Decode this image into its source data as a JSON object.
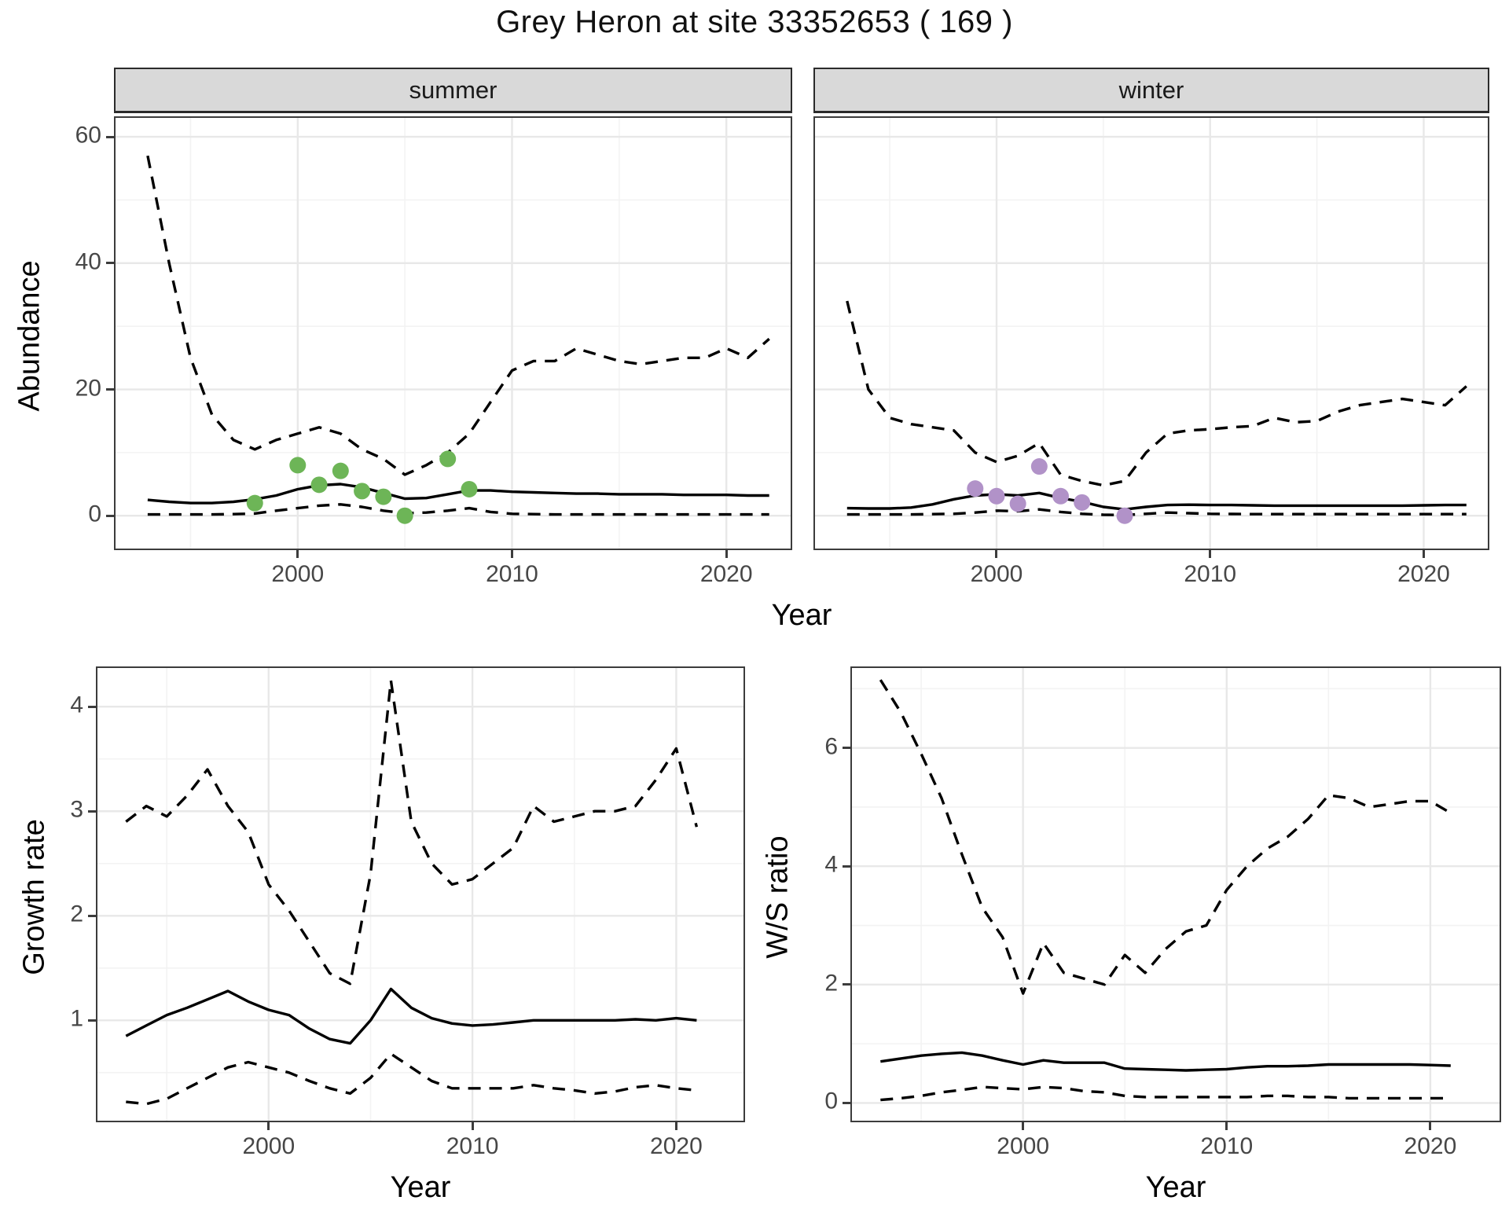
{
  "title": "Grey Heron at site 33352653 ( 169 )",
  "axes": {
    "top_ylabel": "Abundance",
    "top_xlabel": "Year",
    "growth_ylabel": "Growth rate",
    "growth_xlabel": "Year",
    "ws_ylabel": "W/S ratio",
    "ws_xlabel": "Year"
  },
  "facets": {
    "summer": "summer",
    "winter": "winter"
  },
  "colors": {
    "summer_point": "#6db557",
    "winter_point": "#b192c8",
    "line": "#000000",
    "strip_bg": "#d9d9d9",
    "grid_major": "#e8e8e8",
    "grid_minor": "#f3f3f3"
  },
  "chart_data": [
    {
      "key": "abundance_summer",
      "type": "line",
      "facet": "summer",
      "ylabel": "Abundance",
      "xlabel": "Year",
      "xlim": [
        1991.5,
        2023.0
      ],
      "ylim": [
        -5.2,
        63
      ],
      "xticks": [
        2000,
        2010,
        2020
      ],
      "yticks": [
        0,
        20,
        40,
        60
      ],
      "xminor": [
        1995,
        2005,
        2015
      ],
      "yminor": [
        10,
        30,
        50
      ],
      "x": [
        1993,
        1994,
        1995,
        1996,
        1997,
        1998,
        1999,
        2000,
        2001,
        2002,
        2003,
        2004,
        2005,
        2006,
        2007,
        2008,
        2009,
        2010,
        2011,
        2012,
        2013,
        2014,
        2015,
        2016,
        2017,
        2018,
        2019,
        2020,
        2021,
        2022
      ],
      "series": [
        {
          "name": "upper CI",
          "style": "dashed",
          "values": [
            57,
            40,
            25,
            16,
            12,
            10.5,
            12,
            13,
            14,
            13,
            10.5,
            9,
            6.5,
            8,
            10,
            13,
            18,
            23,
            24.5,
            24.5,
            26.5,
            25.5,
            24.5,
            24,
            24.5,
            25,
            25,
            26.5,
            25,
            28
          ]
        },
        {
          "name": "estimate",
          "style": "solid",
          "values": [
            2.5,
            2.2,
            2.0,
            2.0,
            2.2,
            2.6,
            3.2,
            4.2,
            4.8,
            5.0,
            4.5,
            3.6,
            2.7,
            2.8,
            3.4,
            4.0,
            4.0,
            3.8,
            3.7,
            3.6,
            3.5,
            3.5,
            3.4,
            3.4,
            3.4,
            3.3,
            3.3,
            3.3,
            3.2,
            3.2
          ]
        },
        {
          "name": "lower CI",
          "style": "dashed",
          "values": [
            0.2,
            0.2,
            0.2,
            0.2,
            0.25,
            0.35,
            0.8,
            1.2,
            1.6,
            1.8,
            1.4,
            0.8,
            0.4,
            0.5,
            0.8,
            1.2,
            0.6,
            0.3,
            0.25,
            0.2,
            0.2,
            0.2,
            0.2,
            0.2,
            0.2,
            0.2,
            0.2,
            0.2,
            0.2,
            0.2
          ]
        }
      ],
      "points": {
        "name": "observed counts",
        "color": "#6db557",
        "data": [
          [
            1998,
            2
          ],
          [
            2000,
            8
          ],
          [
            2001,
            4.9
          ],
          [
            2002,
            7.1
          ],
          [
            2003,
            3.9
          ],
          [
            2004,
            3
          ],
          [
            2005,
            0
          ],
          [
            2007,
            9
          ],
          [
            2008,
            4.2
          ]
        ]
      }
    },
    {
      "key": "abundance_winter",
      "type": "line",
      "facet": "winter",
      "ylabel": "Abundance",
      "xlabel": "Year",
      "xlim": [
        1991.5,
        2023.0
      ],
      "ylim": [
        -5.2,
        63
      ],
      "xticks": [
        2000,
        2010,
        2020
      ],
      "yticks": [
        0,
        20,
        40,
        60
      ],
      "xminor": [
        1995,
        2005,
        2015
      ],
      "yminor": [
        10,
        30,
        50
      ],
      "x": [
        1993,
        1994,
        1995,
        1996,
        1997,
        1998,
        1999,
        2000,
        2001,
        2002,
        2003,
        2004,
        2005,
        2006,
        2007,
        2008,
        2009,
        2010,
        2011,
        2012,
        2013,
        2014,
        2015,
        2016,
        2017,
        2018,
        2019,
        2020,
        2021,
        2022
      ],
      "series": [
        {
          "name": "upper CI",
          "style": "dashed",
          "values": [
            34,
            20,
            15.5,
            14.5,
            14,
            13.5,
            10,
            8.5,
            9.5,
            11.5,
            6.5,
            5.5,
            4.8,
            5.5,
            10,
            13,
            13.5,
            13.7,
            14,
            14.2,
            15.5,
            14.8,
            15,
            16.5,
            17.5,
            18,
            18.5,
            18,
            17.5,
            20.5
          ]
        },
        {
          "name": "estimate",
          "style": "solid",
          "values": [
            1.2,
            1.15,
            1.15,
            1.3,
            1.8,
            2.6,
            3.2,
            3.4,
            3.2,
            3.6,
            2.8,
            2.2,
            1.4,
            1.0,
            1.4,
            1.7,
            1.75,
            1.7,
            1.7,
            1.65,
            1.6,
            1.6,
            1.6,
            1.6,
            1.6,
            1.6,
            1.6,
            1.65,
            1.7,
            1.7
          ]
        },
        {
          "name": "lower CI",
          "style": "dashed",
          "values": [
            0.2,
            0.2,
            0.2,
            0.2,
            0.25,
            0.3,
            0.5,
            0.8,
            0.7,
            1.0,
            0.6,
            0.3,
            0.15,
            0.1,
            0.3,
            0.5,
            0.4,
            0.3,
            0.28,
            0.25,
            0.25,
            0.25,
            0.25,
            0.25,
            0.25,
            0.25,
            0.25,
            0.25,
            0.25,
            0.25
          ]
        }
      ],
      "points": {
        "name": "observed counts",
        "color": "#b192c8",
        "data": [
          [
            1999,
            4.3
          ],
          [
            2000,
            3.1
          ],
          [
            2001,
            1.9
          ],
          [
            2002,
            7.8
          ],
          [
            2003,
            3.1
          ],
          [
            2004,
            2.1
          ],
          [
            2006,
            0
          ]
        ]
      }
    },
    {
      "key": "growth",
      "type": "line",
      "facet": null,
      "ylabel": "Growth rate",
      "xlabel": "Year",
      "xlim": [
        1991.6,
        2023.3
      ],
      "ylim": [
        0.04,
        4.37
      ],
      "xticks": [
        2000,
        2010,
        2020
      ],
      "yticks": [
        1,
        2,
        3,
        4
      ],
      "xminor": [
        1995,
        2005,
        2015
      ],
      "yminor": [
        0.5,
        1.5,
        2.5,
        3.5
      ],
      "x": [
        1993,
        1994,
        1995,
        1996,
        1997,
        1998,
        1999,
        2000,
        2001,
        2002,
        2003,
        2004,
        2005,
        2006,
        2007,
        2008,
        2009,
        2010,
        2011,
        2012,
        2013,
        2014,
        2015,
        2016,
        2017,
        2018,
        2019,
        2020,
        2021
      ],
      "series": [
        {
          "name": "upper CI",
          "style": "dashed",
          "values": [
            2.9,
            3.05,
            2.95,
            3.15,
            3.4,
            3.05,
            2.8,
            2.3,
            2.05,
            1.75,
            1.45,
            1.35,
            2.4,
            4.25,
            2.9,
            2.5,
            2.3,
            2.35,
            2.5,
            2.65,
            3.05,
            2.9,
            2.95,
            3.0,
            3.0,
            3.05,
            3.3,
            3.6,
            2.85
          ]
        },
        {
          "name": "estimate",
          "style": "solid",
          "values": [
            0.85,
            0.95,
            1.05,
            1.12,
            1.2,
            1.28,
            1.18,
            1.1,
            1.05,
            0.92,
            0.82,
            0.78,
            1.0,
            1.3,
            1.12,
            1.02,
            0.97,
            0.95,
            0.96,
            0.98,
            1.0,
            1.0,
            1.0,
            1.0,
            1.0,
            1.01,
            1.0,
            1.02,
            1.0
          ]
        },
        {
          "name": "lower CI",
          "style": "dashed",
          "values": [
            0.22,
            0.2,
            0.25,
            0.35,
            0.45,
            0.55,
            0.6,
            0.55,
            0.5,
            0.42,
            0.35,
            0.3,
            0.45,
            0.68,
            0.55,
            0.42,
            0.35,
            0.35,
            0.35,
            0.35,
            0.38,
            0.35,
            0.33,
            0.3,
            0.32,
            0.36,
            0.38,
            0.35,
            0.33
          ]
        }
      ],
      "points": null
    },
    {
      "key": "ws",
      "type": "line",
      "facet": null,
      "ylabel": "W/S ratio",
      "xlabel": "Year",
      "xlim": [
        1991.6,
        2023.4
      ],
      "ylim": [
        -0.3,
        7.35
      ],
      "xticks": [
        2000,
        2010,
        2020
      ],
      "yticks": [
        0,
        2,
        4,
        6
      ],
      "xminor": [
        1995,
        2005,
        2015
      ],
      "yminor": [
        1,
        3,
        5,
        7
      ],
      "x": [
        1993,
        1994,
        1995,
        1996,
        1997,
        1998,
        1999,
        2000,
        2001,
        2002,
        2003,
        2004,
        2005,
        2006,
        2007,
        2008,
        2009,
        2010,
        2011,
        2012,
        2013,
        2014,
        2015,
        2016,
        2017,
        2018,
        2019,
        2020,
        2021
      ],
      "series": [
        {
          "name": "upper CI",
          "style": "dashed",
          "values": [
            7.15,
            6.6,
            5.9,
            5.15,
            4.2,
            3.3,
            2.8,
            1.85,
            2.7,
            2.2,
            2.1,
            2.0,
            2.5,
            2.2,
            2.6,
            2.9,
            3.0,
            3.6,
            4.0,
            4.3,
            4.5,
            4.8,
            5.2,
            5.15,
            5.0,
            5.05,
            5.1,
            5.1,
            4.9
          ]
        },
        {
          "name": "estimate",
          "style": "solid",
          "values": [
            0.7,
            0.75,
            0.8,
            0.83,
            0.85,
            0.8,
            0.72,
            0.65,
            0.72,
            0.68,
            0.68,
            0.68,
            0.58,
            0.57,
            0.56,
            0.55,
            0.56,
            0.57,
            0.6,
            0.62,
            0.62,
            0.63,
            0.65,
            0.65,
            0.65,
            0.65,
            0.65,
            0.64,
            0.63
          ]
        },
        {
          "name": "lower CI",
          "style": "dashed",
          "values": [
            0.05,
            0.08,
            0.12,
            0.18,
            0.22,
            0.27,
            0.25,
            0.23,
            0.27,
            0.25,
            0.2,
            0.18,
            0.12,
            0.1,
            0.1,
            0.1,
            0.1,
            0.1,
            0.1,
            0.12,
            0.12,
            0.1,
            0.1,
            0.08,
            0.08,
            0.08,
            0.08,
            0.08,
            0.08
          ]
        }
      ],
      "points": null
    }
  ]
}
